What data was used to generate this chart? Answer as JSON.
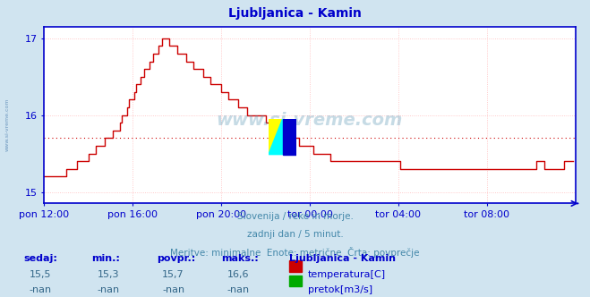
{
  "title": "Ljubljanica - Kamin",
  "title_color": "#0000cc",
  "bg_color": "#d0e4f0",
  "plot_bg_color": "#ffffff",
  "grid_color": "#ffbbbb",
  "axis_color": "#0000cc",
  "tick_label_color": "#0000cc",
  "line_color": "#cc0000",
  "avg_line_color": "#cc0000",
  "avg_value": 15.7,
  "ylim": [
    14.85,
    17.15
  ],
  "yticks": [
    15,
    16,
    17
  ],
  "ylabel_vals": [
    "15",
    "16",
    "17"
  ],
  "xlabel_vals": [
    "pon 12:00",
    "pon 16:00",
    "pon 20:00",
    "tor 00:00",
    "tor 04:00",
    "tor 08:00"
  ],
  "xtick_pos": [
    0,
    48,
    96,
    144,
    192,
    240
  ],
  "footer_line1": "Slovenija / reke in morje.",
  "footer_line2": "zadnji dan / 5 minut.",
  "footer_line3": "Meritve: minimalne  Enote: metrične  Črta: povprečje",
  "footer_color": "#4488aa",
  "stats_label_color": "#0000cc",
  "stats_value_color": "#336688",
  "sedaj": "15,5",
  "min_val": "15,3",
  "povpr": "15,7",
  "maks": "16,6",
  "station_name": "Ljubljanica - Kamin",
  "legend_temp": "temperatura[C]",
  "legend_flow": "pretok[m3/s]",
  "temp_color": "#cc0000",
  "flow_color": "#00aa00",
  "watermark_color": "#4477aa",
  "num_points": 288
}
